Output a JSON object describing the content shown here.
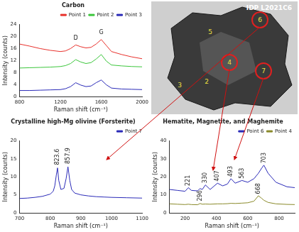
{
  "chart_data": [
    {
      "type": "line",
      "title": "Carbon",
      "x_label": "Raman shift (cm⁻¹)",
      "y_label": "Intensity (counts)",
      "x": [
        800,
        900,
        1000,
        1100,
        1200,
        1250,
        1300,
        1350,
        1400,
        1450,
        1500,
        1550,
        1600,
        1650,
        1700,
        1800,
        1900,
        2000
      ],
      "series": [
        {
          "name": "Point 1",
          "color": "#e8312c",
          "values": [
            17.5,
            16.8,
            16.0,
            15.4,
            15.0,
            15.2,
            16.0,
            17.2,
            16.6,
            16.2,
            16.4,
            17.5,
            19.0,
            17.0,
            15.0,
            14.0,
            13.2,
            12.6
          ]
        },
        {
          "name": "Point 2",
          "color": "#3cc63c",
          "values": [
            9.5,
            9.6,
            9.7,
            9.8,
            10.0,
            10.3,
            11.0,
            12.3,
            11.5,
            11.0,
            11.3,
            12.5,
            14.0,
            11.8,
            10.5,
            10.2,
            10.0,
            9.9
          ]
        },
        {
          "name": "Point 3",
          "color": "#2b2bb8",
          "values": [
            2.0,
            2.0,
            2.1,
            2.2,
            2.3,
            2.6,
            3.3,
            4.6,
            3.8,
            3.3,
            3.5,
            4.6,
            5.5,
            3.9,
            2.8,
            2.5,
            2.4,
            2.3
          ]
        }
      ],
      "annotations": [
        {
          "text": "D",
          "x": 1350,
          "y": 18.5
        },
        {
          "text": "G",
          "x": 1600,
          "y": 20.3
        }
      ],
      "xlim": [
        800,
        2000
      ],
      "xticks": [
        800,
        1200,
        1600,
        2000
      ],
      "ylim": [
        0,
        24
      ],
      "yticks": [
        0,
        4,
        8,
        12,
        16,
        20,
        24
      ],
      "grid": false,
      "legend": "top-right"
    },
    {
      "type": "line",
      "title": "Crystalline high-Mg olivine (Forsterite)",
      "x_label": "Raman shift (cm⁻¹)",
      "y_label": "Intensity (counts)",
      "x": [
        700,
        725,
        750,
        775,
        800,
        810,
        815,
        820,
        824,
        828,
        835,
        845,
        852,
        858,
        864,
        870,
        880,
        900,
        925,
        950,
        975,
        1000,
        1050,
        1100
      ],
      "series": [
        {
          "name": "Point 7",
          "color": "#2b2bb8",
          "values": [
            4.0,
            4.1,
            4.3,
            4.6,
            5.2,
            6.0,
            7.5,
            10.5,
            12.5,
            9.0,
            6.5,
            6.8,
            9.5,
            12.8,
            9.0,
            6.5,
            5.5,
            5.0,
            4.7,
            4.5,
            4.4,
            4.3,
            4.2,
            4.1
          ]
        }
      ],
      "annotations": [
        {
          "text": "823.6",
          "x": 824,
          "y": 13.3
        },
        {
          "text": "857.9",
          "x": 858,
          "y": 13.6
        }
      ],
      "xlim": [
        700,
        1100
      ],
      "xticks": [
        700,
        800,
        900,
        1000,
        1100
      ],
      "ylim": [
        0,
        20
      ],
      "yticks": [
        0,
        5,
        10,
        15,
        20
      ],
      "grid": false,
      "legend": "top-right"
    },
    {
      "type": "line",
      "title": "Hematite, Magnetite, and Maghemite",
      "x_label": "Raman shift (cm⁻¹)",
      "y_label": "Intensity (counts)",
      "x": [
        100,
        150,
        200,
        221,
        240,
        280,
        296,
        310,
        330,
        360,
        407,
        440,
        470,
        493,
        520,
        563,
        600,
        640,
        668,
        690,
        703,
        730,
        780,
        850,
        900
      ],
      "series": [
        {
          "name": "Point 6",
          "color": "#2b2bb8",
          "values": [
            13,
            12.5,
            12,
            14,
            12.5,
            12.2,
            13.5,
            13,
            15.5,
            13,
            16.5,
            15,
            16,
            19,
            16.5,
            18,
            17,
            19,
            22,
            25,
            26.5,
            22,
            17,
            14.5,
            14
          ]
        },
        {
          "name": "Point 4",
          "color": "#8a8a2a",
          "values": [
            5,
            4.8,
            4.6,
            4.8,
            4.6,
            4.5,
            5.2,
            4.8,
            4.9,
            4.8,
            5,
            5,
            5.1,
            5.3,
            5.2,
            5.4,
            5.6,
            6.5,
            9.5,
            8,
            7,
            5.8,
            5,
            4.7,
            4.6
          ]
        }
      ],
      "annotations": [
        {
          "text": "221",
          "x": 221,
          "y": 15
        },
        {
          "text": "296",
          "x": 296,
          "y": 6.5
        },
        {
          "text": "330",
          "x": 330,
          "y": 16.5
        },
        {
          "text": "407",
          "x": 407,
          "y": 17.5
        },
        {
          "text": "493",
          "x": 493,
          "y": 20
        },
        {
          "text": "563",
          "x": 563,
          "y": 19
        },
        {
          "text": "668",
          "x": 668,
          "y": 10.5
        },
        {
          "text": "703",
          "x": 703,
          "y": 27.5
        }
      ],
      "xlim": [
        100,
        900
      ],
      "xticks": [
        200,
        400,
        600,
        800
      ],
      "ylim": [
        0,
        40
      ],
      "yticks": [
        0,
        10,
        20,
        30,
        40
      ],
      "grid": false,
      "legend": "top-right"
    }
  ],
  "image": {
    "title": "IDP L2021C6",
    "markers": [
      {
        "label": "5",
        "circled": false
      },
      {
        "label": "6",
        "circled": true
      },
      {
        "label": "4",
        "circled": true
      },
      {
        "label": "7",
        "circled": true
      },
      {
        "label": "2",
        "circled": false
      },
      {
        "label": "3",
        "circled": false
      }
    ]
  }
}
